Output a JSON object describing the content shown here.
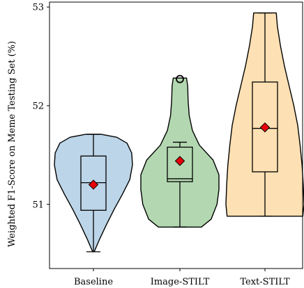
{
  "chart_data": {
    "type": "violin",
    "title": "",
    "xlabel": "",
    "ylabel": "Weighted F1-Score on Meme Testing Set (%)",
    "ylim": [
      50.35,
      53.05
    ],
    "yticks": [
      51,
      52,
      53
    ],
    "grid": false,
    "legend": "none",
    "categories": [
      "Baseline",
      "Image-STILT",
      "Text-STILT"
    ],
    "groups": [
      {
        "name": "Baseline",
        "color": "#bcd5e8",
        "violin_min": 50.52,
        "violin_max": 51.71,
        "density_profile": [
          [
            50.52,
            0.02
          ],
          [
            50.65,
            0.16
          ],
          [
            50.8,
            0.34
          ],
          [
            50.95,
            0.53
          ],
          [
            51.1,
            0.74
          ],
          [
            51.25,
            0.93
          ],
          [
            51.4,
            1.0
          ],
          [
            51.52,
            0.98
          ],
          [
            51.62,
            0.86
          ],
          [
            51.68,
            0.6
          ],
          [
            51.71,
            0.2
          ]
        ],
        "whisker_low": 50.52,
        "q1": 50.94,
        "median": 51.22,
        "q3": 51.49,
        "whisker_high": 51.71,
        "mean": 51.2,
        "outliers": []
      },
      {
        "name": "Image-STILT",
        "color": "#b3d8b1",
        "violin_min": 50.77,
        "violin_max": 52.28,
        "density_profile": [
          [
            50.77,
            0.55
          ],
          [
            50.85,
            0.8
          ],
          [
            51.0,
            0.95
          ],
          [
            51.15,
            1.0
          ],
          [
            51.3,
            1.0
          ],
          [
            51.45,
            0.85
          ],
          [
            51.6,
            0.5
          ],
          [
            51.75,
            0.32
          ],
          [
            51.9,
            0.24
          ],
          [
            52.05,
            0.21
          ],
          [
            52.2,
            0.2
          ],
          [
            52.28,
            0.17
          ]
        ],
        "whisker_low": 50.77,
        "q1": 51.23,
        "median": 51.26,
        "q3": 51.58,
        "whisker_high": 51.63,
        "mean": 51.44,
        "outliers": [
          52.27
        ]
      },
      {
        "name": "Text-STILT",
        "color": "#fde0b3",
        "violin_min": 50.88,
        "violin_max": 52.94,
        "density_profile": [
          [
            50.88,
            0.97
          ],
          [
            51.0,
            1.0
          ],
          [
            51.2,
            0.98
          ],
          [
            51.4,
            0.95
          ],
          [
            51.6,
            0.9
          ],
          [
            51.8,
            0.84
          ],
          [
            52.0,
            0.74
          ],
          [
            52.2,
            0.62
          ],
          [
            52.4,
            0.5
          ],
          [
            52.6,
            0.4
          ],
          [
            52.8,
            0.32
          ],
          [
            52.94,
            0.29
          ]
        ],
        "whisker_low": 50.88,
        "q1": 51.33,
        "median": 51.77,
        "q3": 52.24,
        "whisker_high": 52.94,
        "mean": 51.78,
        "outliers": []
      }
    ]
  }
}
